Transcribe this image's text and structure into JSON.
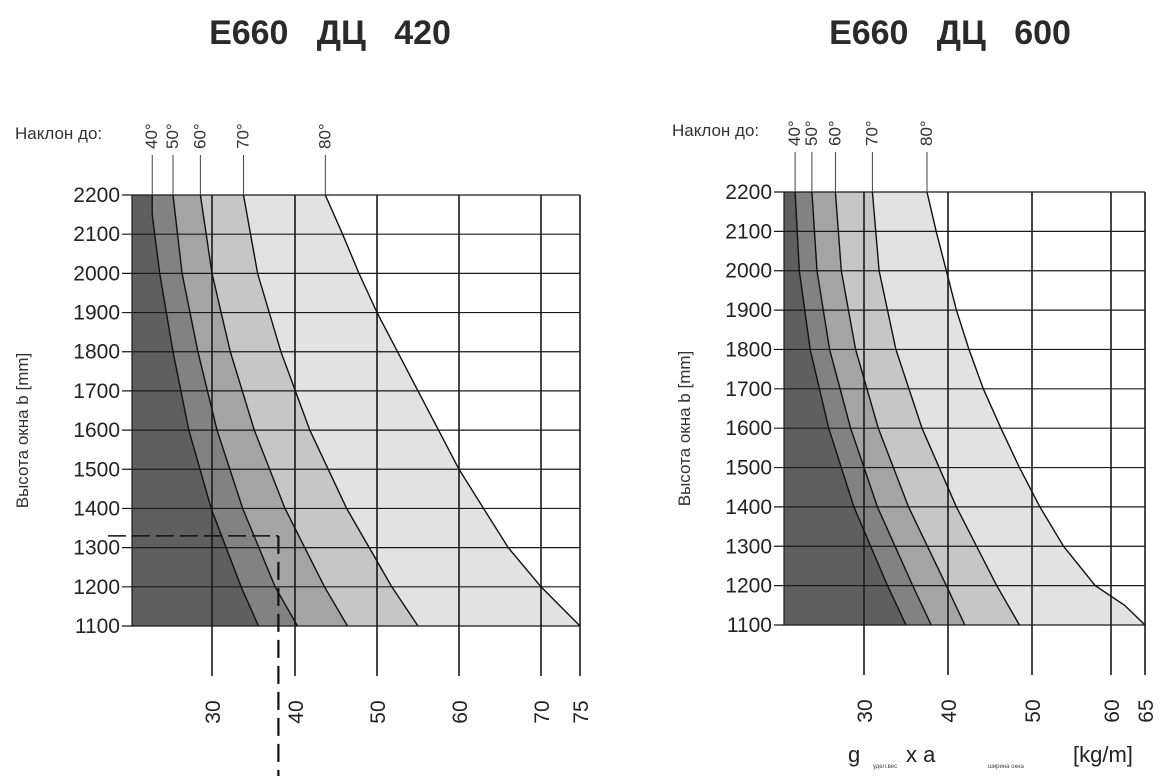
{
  "chart_data": [
    {
      "type": "area",
      "title": "E660   ДЦ   420",
      "ylabel": "Высота окна  b  [mm]",
      "slope_label": "Наклон до:",
      "xlabel": "",
      "yticks": [
        1100,
        1200,
        1300,
        1400,
        1500,
        1600,
        1700,
        1800,
        1900,
        2000,
        2100,
        2200
      ],
      "xticks": [
        30,
        40,
        50,
        60,
        70,
        75
      ],
      "xlim": [
        20,
        75
      ],
      "ylim": [
        1100,
        2200
      ],
      "series": [
        {
          "name": "40°",
          "points": [
            [
              22.8,
              2200
            ],
            [
              22.8,
              2150
            ],
            [
              23.7,
              2000
            ],
            [
              25.3,
              1800
            ],
            [
              27.2,
              1600
            ],
            [
              29.9,
              1400
            ],
            [
              33.5,
              1200
            ],
            [
              35.6,
              1100
            ]
          ]
        },
        {
          "name": "50°",
          "points": [
            [
              25.3,
              2200
            ],
            [
              26.4,
              2000
            ],
            [
              28.3,
              1800
            ],
            [
              30.6,
              1600
            ],
            [
              33.7,
              1400
            ],
            [
              37.6,
              1200
            ],
            [
              40.3,
              1100
            ]
          ]
        },
        {
          "name": "60°",
          "points": [
            [
              28.6,
              2200
            ],
            [
              30.0,
              2000
            ],
            [
              32.2,
              1800
            ],
            [
              35.1,
              1600
            ],
            [
              38.8,
              1400
            ],
            [
              43.6,
              1200
            ],
            [
              46.4,
              1100
            ]
          ]
        },
        {
          "name": "70°",
          "points": [
            [
              33.8,
              2200
            ],
            [
              35.5,
              2000
            ],
            [
              38.3,
              1800
            ],
            [
              41.8,
              1600
            ],
            [
              46.3,
              1400
            ],
            [
              51.8,
              1200
            ],
            [
              55.0,
              1100
            ]
          ]
        },
        {
          "name": "80°",
          "points": [
            [
              43.7,
              2200
            ],
            [
              45.8,
              2100
            ],
            [
              47.8,
              2000
            ],
            [
              50.0,
              1900
            ],
            [
              52.5,
              1800
            ],
            [
              55.0,
              1700
            ],
            [
              57.5,
              1600
            ],
            [
              60.0,
              1500
            ],
            [
              63.0,
              1400
            ],
            [
              66.0,
              1300
            ],
            [
              70.0,
              1200
            ],
            [
              75.0,
              1100
            ]
          ]
        }
      ],
      "reference": {
        "y": 1330,
        "x": 38.0
      },
      "colors": [
        "#5f5f5f",
        "#828282",
        "#a4a4a4",
        "#c6c6c6",
        "#e2e2e2"
      ]
    },
    {
      "type": "area",
      "title": "E660   ДЦ   600",
      "ylabel": "Высота окна  b  [mm]",
      "slope_label": "Наклон до:",
      "xlabel": "g",
      "xlabel_sub1": "удел.вес",
      "xlabel_mid": "x a",
      "xlabel_sub2": "ширина окна",
      "xlabel_unit": "[kg/m]",
      "yticks": [
        1100,
        1200,
        1300,
        1400,
        1500,
        1600,
        1700,
        1800,
        1900,
        2000,
        2100,
        2200
      ],
      "xticks": [
        30,
        40,
        50,
        60,
        65
      ],
      "xlim": [
        20,
        65
      ],
      "ylim": [
        1100,
        2200
      ],
      "series": [
        {
          "name": "40°",
          "points": [
            [
              21.8,
              2200
            ],
            [
              22.3,
              2000
            ],
            [
              23.6,
              1800
            ],
            [
              25.8,
              1600
            ],
            [
              28.8,
              1400
            ],
            [
              32.8,
              1200
            ],
            [
              35.0,
              1100
            ]
          ]
        },
        {
          "name": "50°",
          "points": [
            [
              23.8,
              2200
            ],
            [
              24.4,
              2000
            ],
            [
              25.9,
              1800
            ],
            [
              28.4,
              1600
            ],
            [
              31.6,
              1400
            ],
            [
              35.8,
              1200
            ],
            [
              38.0,
              1100
            ]
          ]
        },
        {
          "name": "60°",
          "points": [
            [
              26.6,
              2200
            ],
            [
              27.3,
              2000
            ],
            [
              29.0,
              1800
            ],
            [
              31.7,
              1600
            ],
            [
              35.3,
              1400
            ],
            [
              39.8,
              1200
            ],
            [
              42.0,
              1100
            ]
          ]
        },
        {
          "name": "70°",
          "points": [
            [
              31.0,
              2200
            ],
            [
              31.8,
              2000
            ],
            [
              33.8,
              1800
            ],
            [
              36.9,
              1600
            ],
            [
              41.0,
              1400
            ],
            [
              45.8,
              1200
            ],
            [
              48.5,
              1100
            ]
          ]
        },
        {
          "name": "80°",
          "points": [
            [
              37.5,
              2200
            ],
            [
              38.6,
              2100
            ],
            [
              39.8,
              2000
            ],
            [
              41.0,
              1900
            ],
            [
              42.5,
              1800
            ],
            [
              44.2,
              1700
            ],
            [
              46.3,
              1600
            ],
            [
              48.5,
              1500
            ],
            [
              51.0,
              1400
            ],
            [
              54.0,
              1300
            ],
            [
              58.0,
              1200
            ],
            [
              62.0,
              1150
            ],
            [
              65.0,
              1100
            ]
          ]
        }
      ],
      "colors": [
        "#5f5f5f",
        "#828282",
        "#a4a4a4",
        "#c6c6c6",
        "#e2e2e2"
      ]
    }
  ]
}
